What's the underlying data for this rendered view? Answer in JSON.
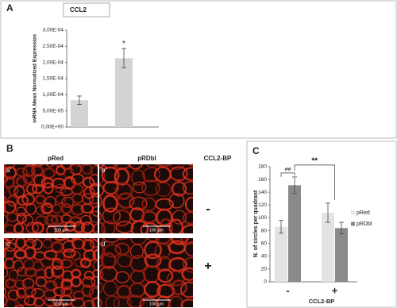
{
  "chart_data": [
    {
      "type": "bar",
      "panel_label": "A",
      "title": "CCL2",
      "y_label": "mRNA Mean Normalized Expression",
      "categories": [
        null,
        null
      ],
      "values": [
        8.3e-05,
        0.000213
      ],
      "errors": [
        1.3e-05,
        3e-05
      ],
      "color": "#d3d3d3",
      "ylim": [
        0,
        0.0003
      ],
      "yticks": [
        {
          "value": 0,
          "label": "0,00E+00"
        },
        {
          "value": 5e-05,
          "label": "5,00E-05"
        },
        {
          "value": 0.0001,
          "label": "1,00E-04"
        },
        {
          "value": 0.00015,
          "label": "1,50E-04"
        },
        {
          "value": 0.0002,
          "label": "2,00E-04"
        },
        {
          "value": 0.00025,
          "label": "2,50E-04"
        },
        {
          "value": 0.0003,
          "label": "3,00E-04"
        }
      ],
      "annotations": [
        "*"
      ]
    },
    {
      "type": "bar",
      "panel_label": "C",
      "y_label": "N. of circles per quadrant",
      "x_label": "CCL2-BP",
      "categories": [
        "-",
        "+"
      ],
      "series": [
        {
          "name": "pRed",
          "color": "#e3e3e3",
          "values": [
            86,
            108
          ],
          "errors": [
            10,
            15
          ]
        },
        {
          "name": "pRDbl",
          "color": "#8a8a8a",
          "values": [
            151,
            84
          ],
          "errors": [
            13,
            9
          ]
        }
      ],
      "ylim": [
        0,
        180
      ],
      "yticks": [
        0,
        20,
        40,
        60,
        80,
        100,
        120,
        140,
        160,
        180
      ],
      "legend": "right",
      "annotations": [
        "##",
        "**"
      ]
    }
  ],
  "micrographs": {
    "panel_label": "B",
    "columns": [
      "pRed",
      "pRDbl",
      "CCL2-BP"
    ],
    "rows": [
      "-",
      "+"
    ],
    "labels": [
      "a'",
      "b'",
      "c'",
      "d'"
    ],
    "scale_bars": [
      "100 µm",
      "100 µm",
      "100 µm",
      "100 µm"
    ]
  }
}
